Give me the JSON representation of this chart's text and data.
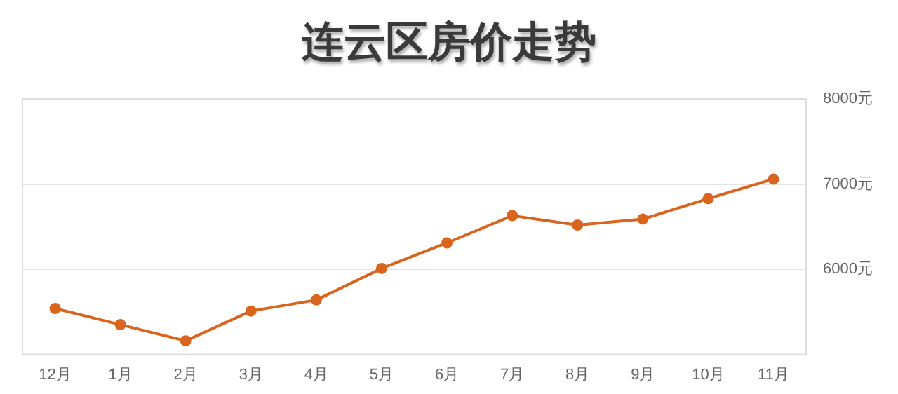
{
  "chart_data": {
    "type": "line",
    "title": "连云区房价走势",
    "categories": [
      "12月",
      "1月",
      "2月",
      "3月",
      "4月",
      "5月",
      "6月",
      "7月",
      "8月",
      "9月",
      "10月",
      "11月"
    ],
    "series": [
      {
        "color": "#d9641e",
        "values": [
          5540,
          5350,
          5160,
          5510,
          5640,
          6010,
          6310,
          6630,
          6520,
          6590,
          6830,
          7060
        ]
      }
    ],
    "ylim": [
      5000,
      8000
    ],
    "yticks": [
      {
        "value": 6000,
        "label": "6000元"
      },
      {
        "value": 7000,
        "label": "7000元"
      },
      {
        "value": 8000,
        "label": "8000元"
      }
    ],
    "grid": "y",
    "marker": "circle",
    "line_style": "solid",
    "legend": false
  }
}
